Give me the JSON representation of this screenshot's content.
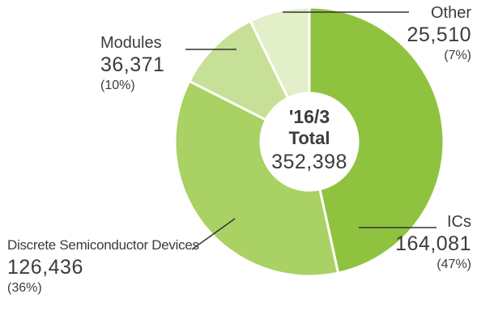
{
  "chart_data": {
    "type": "pie",
    "center": {
      "period": "'16/3",
      "label": "Total",
      "value": "352,398"
    },
    "slices": [
      {
        "name": "ICs",
        "value": 164081,
        "value_label": "164,081",
        "pct_label": "(47%)",
        "color": "#8fc33f"
      },
      {
        "name": "Discrete Semiconductor Devices",
        "value": 126436,
        "value_label": "126,436",
        "pct_label": "(36%)",
        "color": "#a9d163"
      },
      {
        "name": "Modules",
        "value": 36371,
        "value_label": "36,371",
        "pct_label": "(10%)",
        "color": "#c6e097"
      },
      {
        "name": "Other",
        "value": 25510,
        "value_label": "25,510",
        "pct_label": "(7%)",
        "color": "#e3efc8"
      }
    ]
  }
}
